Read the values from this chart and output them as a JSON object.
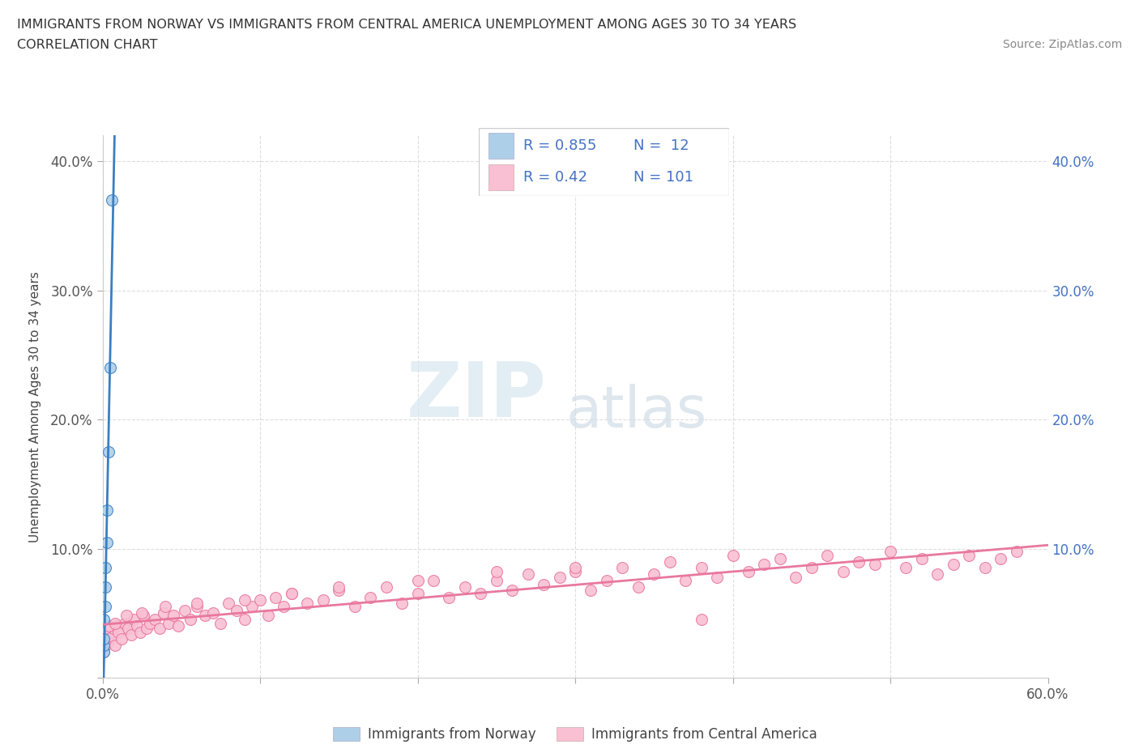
{
  "title_line1": "IMMIGRANTS FROM NORWAY VS IMMIGRANTS FROM CENTRAL AMERICA UNEMPLOYMENT AMONG AGES 30 TO 34 YEARS",
  "title_line2": "CORRELATION CHART",
  "source_text": "Source: ZipAtlas.com",
  "ylabel": "Unemployment Among Ages 30 to 34 years",
  "xlim": [
    0.0,
    0.6
  ],
  "ylim": [
    0.0,
    0.42
  ],
  "norway_R": 0.855,
  "norway_N": 12,
  "central_R": 0.42,
  "central_N": 101,
  "norway_color": "#aecfe8",
  "central_color": "#f9c0d4",
  "norway_line_color": "#3a7fc1",
  "central_line_color": "#e8789e",
  "watermark_zip": "ZIP",
  "watermark_atlas": "atlas",
  "norway_x": [
    0.001,
    0.001,
    0.001,
    0.001,
    0.002,
    0.002,
    0.002,
    0.003,
    0.003,
    0.004,
    0.005,
    0.006
  ],
  "norway_y": [
    0.02,
    0.025,
    0.03,
    0.045,
    0.055,
    0.07,
    0.085,
    0.105,
    0.13,
    0.175,
    0.24,
    0.37
  ],
  "central_x": [
    0.001,
    0.002,
    0.003,
    0.004,
    0.005,
    0.006,
    0.007,
    0.008,
    0.009,
    0.01,
    0.012,
    0.014,
    0.016,
    0.018,
    0.02,
    0.022,
    0.024,
    0.026,
    0.028,
    0.03,
    0.033,
    0.036,
    0.039,
    0.042,
    0.045,
    0.048,
    0.052,
    0.056,
    0.06,
    0.065,
    0.07,
    0.075,
    0.08,
    0.085,
    0.09,
    0.095,
    0.1,
    0.105,
    0.11,
    0.115,
    0.12,
    0.13,
    0.14,
    0.15,
    0.16,
    0.17,
    0.18,
    0.19,
    0.2,
    0.21,
    0.22,
    0.23,
    0.24,
    0.25,
    0.26,
    0.27,
    0.28,
    0.29,
    0.3,
    0.31,
    0.32,
    0.33,
    0.34,
    0.35,
    0.36,
    0.37,
    0.38,
    0.39,
    0.4,
    0.41,
    0.42,
    0.43,
    0.44,
    0.45,
    0.46,
    0.47,
    0.48,
    0.49,
    0.5,
    0.51,
    0.52,
    0.53,
    0.54,
    0.55,
    0.56,
    0.57,
    0.58,
    0.002,
    0.004,
    0.008,
    0.015,
    0.025,
    0.04,
    0.06,
    0.09,
    0.12,
    0.15,
    0.2,
    0.25,
    0.3,
    0.38
  ],
  "central_y": [
    0.02,
    0.025,
    0.03,
    0.028,
    0.035,
    0.032,
    0.038,
    0.025,
    0.04,
    0.035,
    0.03,
    0.042,
    0.038,
    0.033,
    0.045,
    0.04,
    0.035,
    0.048,
    0.038,
    0.042,
    0.045,
    0.038,
    0.05,
    0.042,
    0.048,
    0.04,
    0.052,
    0.045,
    0.055,
    0.048,
    0.05,
    0.042,
    0.058,
    0.052,
    0.045,
    0.055,
    0.06,
    0.048,
    0.062,
    0.055,
    0.065,
    0.058,
    0.06,
    0.068,
    0.055,
    0.062,
    0.07,
    0.058,
    0.065,
    0.075,
    0.062,
    0.07,
    0.065,
    0.075,
    0.068,
    0.08,
    0.072,
    0.078,
    0.082,
    0.068,
    0.075,
    0.085,
    0.07,
    0.08,
    0.09,
    0.075,
    0.085,
    0.078,
    0.095,
    0.082,
    0.088,
    0.092,
    0.078,
    0.085,
    0.095,
    0.082,
    0.09,
    0.088,
    0.098,
    0.085,
    0.092,
    0.08,
    0.088,
    0.095,
    0.085,
    0.092,
    0.098,
    0.038,
    0.04,
    0.042,
    0.048,
    0.05,
    0.055,
    0.058,
    0.06,
    0.065,
    0.07,
    0.075,
    0.082,
    0.085,
    0.045
  ],
  "background_color": "#ffffff",
  "grid_color": "#dddddd",
  "legend_box_color": "#4472c4",
  "legend_text_color": "#4472c4"
}
